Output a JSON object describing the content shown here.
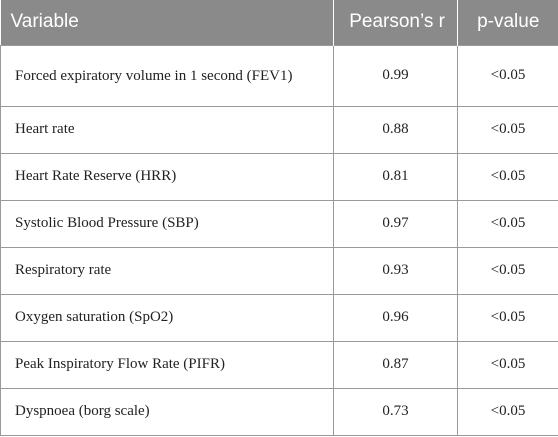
{
  "table": {
    "headers": {
      "variable": "Variable",
      "pearson_r": "Pearson’s r",
      "p_value": "p-value"
    },
    "rows": [
      {
        "variable": "Forced expiratory volume in 1 second (FEV1)",
        "r": "0.99",
        "p": "<0.05"
      },
      {
        "variable": "Heart rate",
        "r": "0.88",
        "p": "<0.05"
      },
      {
        "variable": "Heart Rate Reserve (HRR)",
        "r": "0.81",
        "p": "<0.05"
      },
      {
        "variable": "Systolic Blood Pressure (SBP)",
        "r": "0.97",
        "p": "<0.05"
      },
      {
        "variable": "Respiratory rate",
        "r": "0.93",
        "p": "<0.05"
      },
      {
        "variable": "Oxygen saturation (SpO2)",
        "r": "0.96",
        "p": "<0.05"
      },
      {
        "variable": "Peak Inspiratory Flow Rate (PIFR)",
        "r": "0.87",
        "p": "<0.05"
      },
      {
        "variable": "Dyspnoea (borg scale)",
        "r": "0.73",
        "p": "<0.05"
      }
    ]
  },
  "colors": {
    "header_background": "#8a8a8a",
    "header_text": "#ffffff",
    "grid_lines": "#9a9a9a"
  }
}
